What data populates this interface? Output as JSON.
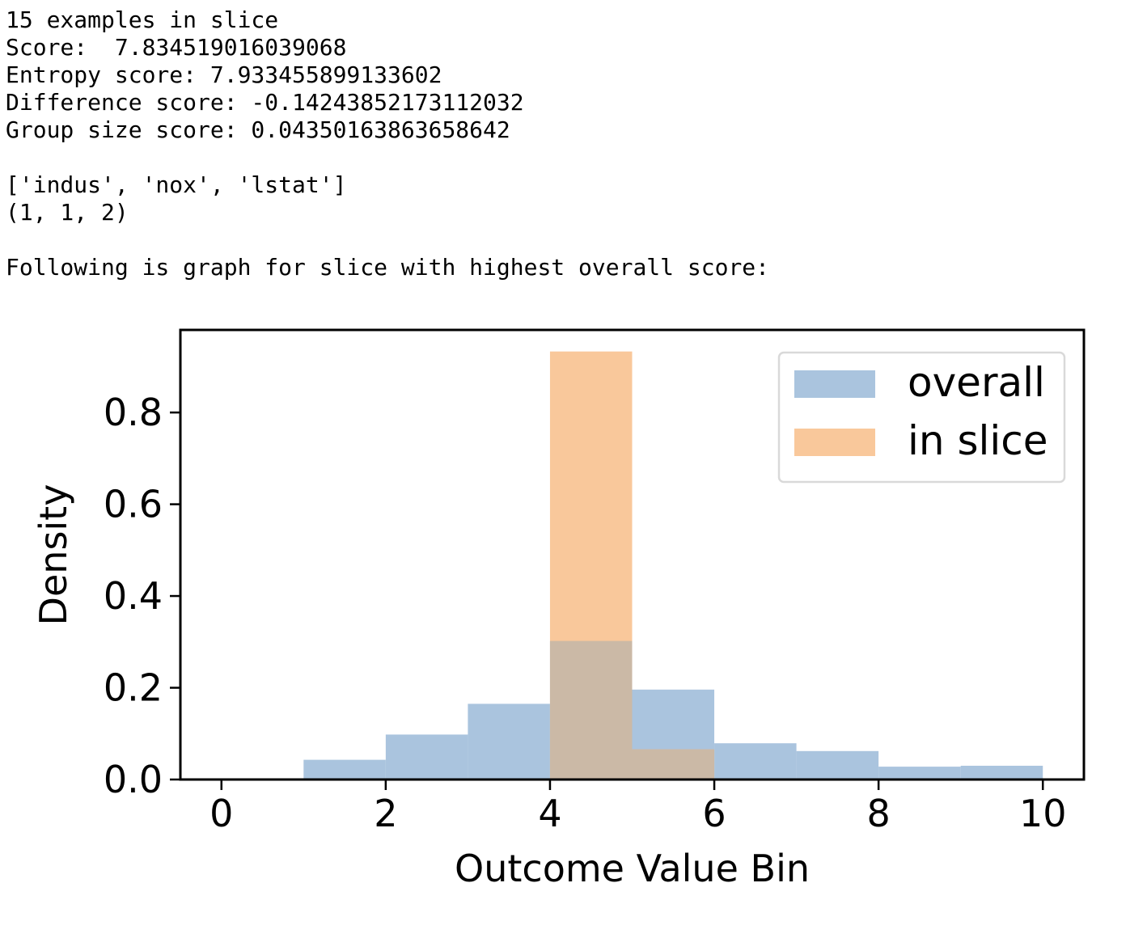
{
  "output": {
    "examples_line": "15 examples in slice",
    "score_line": "Score:  7.834519016039068",
    "entropy_line": "Entropy score: 7.933455899133602",
    "difference_line": "Difference score: -0.14243852173112032",
    "group_size_line": "Group size score: 0.04350163863658642",
    "features_line": "['indus', 'nox', 'lstat']",
    "tuple_line": "(1, 1, 2)",
    "graph_intro_line": "Following is graph for slice with highest overall score:"
  },
  "chart_data": {
    "type": "bar",
    "title": "",
    "xlabel": "Outcome Value Bin",
    "ylabel": "Density",
    "xlim": [
      -0.5,
      10.5
    ],
    "ylim": [
      0,
      0.98
    ],
    "xticks": [
      0,
      2,
      4,
      6,
      8,
      10
    ],
    "xtick_labels": [
      "0",
      "2",
      "4",
      "6",
      "8",
      "10"
    ],
    "yticks": [
      0.0,
      0.2,
      0.4,
      0.6,
      0.8
    ],
    "ytick_labels": [
      "0.0",
      "0.2",
      "0.4",
      "0.6",
      "0.8"
    ],
    "bin_edges": [
      0,
      1,
      2,
      3,
      4,
      5,
      6,
      7,
      8,
      9,
      10
    ],
    "series": [
      {
        "name": "overall",
        "color": "#aac4de",
        "values": [
          0.0,
          0.043,
          0.098,
          0.165,
          0.302,
          0.196,
          0.079,
          0.062,
          0.028,
          0.03
        ]
      },
      {
        "name": "in slice",
        "color": "#f9c89b",
        "values": [
          0.0,
          0.0,
          0.0,
          0.0,
          0.933,
          0.066,
          0.0,
          0.0,
          0.0,
          0.0
        ]
      }
    ],
    "overlap_color": "#cbb9a6",
    "legend_position": "upper right",
    "grid": false
  }
}
